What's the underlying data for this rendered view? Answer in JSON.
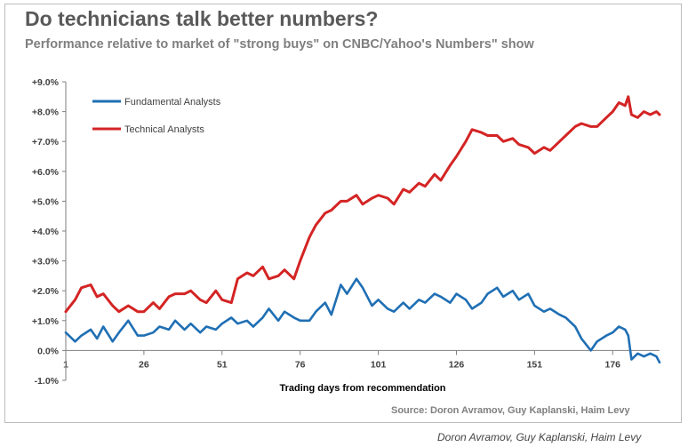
{
  "chart_data": {
    "type": "line",
    "title": "Do technicians talk better numbers?",
    "subtitle": "Performance relative to market of \"strong buys\" on CNBC/Yahoo's Numbers\" show",
    "xlabel": "Trading days from recommendation",
    "ylabel": "",
    "xlim": [
      1,
      191
    ],
    "ylim": [
      -1.0,
      9.0
    ],
    "yticks": [
      9,
      8,
      7,
      6,
      5,
      4,
      3,
      2,
      1,
      0,
      -1
    ],
    "ytick_labels": [
      "+9.0%",
      "+8.0%",
      "+7.0%",
      "+6.0%",
      "+5.0%",
      "+4.0%",
      "+3.0%",
      "+2.0%",
      "+1.0%",
      "0.0%",
      "-1.0%"
    ],
    "xticks": [
      1,
      26,
      51,
      76,
      101,
      126,
      151,
      176
    ],
    "xtick_labels": [
      "1",
      "26",
      "51",
      "76",
      "101",
      "126",
      "151",
      "176"
    ],
    "legend_position": "top-left",
    "series": [
      {
        "name": "Fundamental Analysts",
        "color": "#1f6fb4",
        "x": [
          1,
          4,
          6,
          9,
          11,
          13,
          16,
          18,
          21,
          24,
          26,
          29,
          31,
          34,
          36,
          39,
          41,
          44,
          46,
          49,
          51,
          54,
          56,
          59,
          61,
          64,
          66,
          69,
          71,
          74,
          76,
          79,
          81,
          84,
          86,
          89,
          91,
          94,
          96,
          99,
          101,
          104,
          106,
          109,
          111,
          114,
          116,
          119,
          121,
          124,
          126,
          129,
          131,
          134,
          136,
          139,
          141,
          144,
          146,
          149,
          151,
          154,
          156,
          159,
          161,
          164,
          166,
          169,
          171,
          174,
          176,
          178,
          180,
          181,
          182,
          184,
          186,
          188,
          190,
          191
        ],
        "values": [
          0.6,
          0.3,
          0.5,
          0.7,
          0.4,
          0.8,
          0.3,
          0.6,
          1.0,
          0.5,
          0.5,
          0.6,
          0.8,
          0.7,
          1.0,
          0.7,
          0.9,
          0.6,
          0.8,
          0.7,
          0.9,
          1.1,
          0.9,
          1.0,
          0.8,
          1.1,
          1.4,
          1.0,
          1.3,
          1.1,
          1.0,
          1.0,
          1.3,
          1.6,
          1.2,
          2.2,
          1.9,
          2.4,
          2.1,
          1.5,
          1.7,
          1.4,
          1.3,
          1.6,
          1.4,
          1.7,
          1.6,
          1.9,
          1.8,
          1.6,
          1.9,
          1.7,
          1.4,
          1.6,
          1.9,
          2.1,
          1.8,
          2.0,
          1.7,
          1.9,
          1.5,
          1.3,
          1.4,
          1.2,
          1.1,
          0.8,
          0.4,
          0.0,
          0.3,
          0.5,
          0.6,
          0.8,
          0.7,
          0.5,
          -0.3,
          -0.1,
          -0.2,
          -0.1,
          -0.2,
          -0.4
        ]
      },
      {
        "name": "Technical Analysts",
        "color": "#d42424",
        "x": [
          1,
          4,
          6,
          9,
          11,
          13,
          16,
          18,
          21,
          24,
          26,
          29,
          31,
          34,
          36,
          39,
          41,
          44,
          46,
          49,
          51,
          54,
          56,
          59,
          61,
          64,
          66,
          69,
          71,
          74,
          76,
          79,
          81,
          84,
          86,
          89,
          91,
          94,
          96,
          99,
          101,
          104,
          106,
          109,
          111,
          114,
          116,
          119,
          121,
          124,
          126,
          129,
          131,
          134,
          136,
          139,
          141,
          144,
          146,
          149,
          151,
          154,
          156,
          159,
          161,
          164,
          166,
          169,
          171,
          174,
          176,
          178,
          180,
          181,
          182,
          184,
          186,
          188,
          190,
          191
        ],
        "values": [
          1.3,
          1.7,
          2.1,
          2.2,
          1.8,
          1.9,
          1.5,
          1.3,
          1.5,
          1.3,
          1.3,
          1.6,
          1.4,
          1.8,
          1.9,
          1.9,
          2.0,
          1.7,
          1.6,
          2.0,
          1.7,
          1.6,
          2.4,
          2.6,
          2.5,
          2.8,
          2.4,
          2.5,
          2.7,
          2.4,
          3.0,
          3.8,
          4.2,
          4.6,
          4.7,
          5.0,
          5.0,
          5.2,
          4.9,
          5.1,
          5.2,
          5.1,
          4.9,
          5.4,
          5.3,
          5.6,
          5.5,
          5.9,
          5.7,
          6.2,
          6.5,
          7.0,
          7.4,
          7.3,
          7.2,
          7.2,
          7.0,
          7.1,
          6.9,
          6.8,
          6.6,
          6.8,
          6.7,
          7.0,
          7.2,
          7.5,
          7.6,
          7.5,
          7.5,
          7.8,
          8.0,
          8.3,
          8.2,
          8.5,
          7.9,
          7.8,
          8.0,
          7.9,
          8.0,
          7.9
        ]
      }
    ]
  },
  "source_text": "Source:  Doron Avramov, Guy Kaplanski, Haim Levy",
  "credit_text": "Doron Avramov, Guy Kaplanski, Haim Levy"
}
